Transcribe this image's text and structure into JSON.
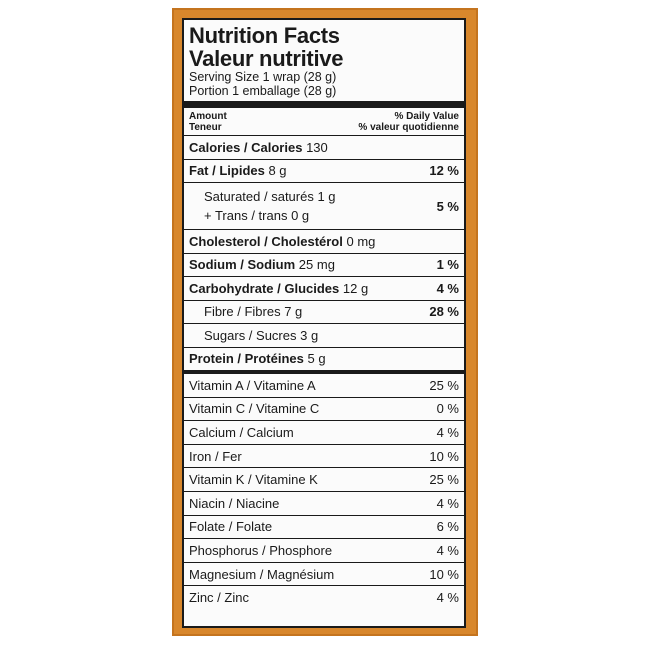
{
  "title_en": "Nutrition Facts",
  "title_fr": "Valeur nutritive",
  "serving_en": "Serving Size 1 wrap (28 g)",
  "serving_fr": "Portion 1 emballage (28 g)",
  "header": {
    "amount_en": "Amount",
    "amount_fr": "Teneur",
    "dv_en": "% Daily Value",
    "dv_fr": "% valeur quotidienne"
  },
  "calories": {
    "label": "Calories / Calories",
    "amount": "130"
  },
  "fat": {
    "label": "Fat / Lipides",
    "amount": "8 g",
    "dv": "12 %"
  },
  "saturated": {
    "label": "Saturated / saturés",
    "amount": "1 g"
  },
  "trans": {
    "label": "+ Trans / trans",
    "amount": "0 g"
  },
  "sat_trans_dv": "5 %",
  "cholesterol": {
    "label": "Cholesterol / Cholestérol",
    "amount": "0 mg"
  },
  "sodium": {
    "label": "Sodium / Sodium",
    "amount": "25 mg",
    "dv": "1 %"
  },
  "carbohydrate": {
    "label": "Carbohydrate / Glucides",
    "amount": "12 g",
    "dv": "4 %"
  },
  "fibre": {
    "label": "Fibre / Fibres",
    "amount": "7 g",
    "dv": "28 %"
  },
  "sugars": {
    "label": "Sugars / Sucres",
    "amount": "3 g"
  },
  "protein": {
    "label": "Protein / Protéines",
    "amount": "5 g"
  },
  "vitamins": [
    {
      "label": "Vitamin A / Vitamine A",
      "dv": "25 %"
    },
    {
      "label": "Vitamin C / Vitamine C",
      "dv": "0 %"
    },
    {
      "label": "Calcium / Calcium",
      "dv": "4 %"
    },
    {
      "label": "Iron / Fer",
      "dv": "10 %"
    },
    {
      "label": "Vitamin K / Vitamine K",
      "dv": "25 %"
    },
    {
      "label": "Niacin / Niacine",
      "dv": "4 %"
    },
    {
      "label": "Folate / Folate",
      "dv": "6 %"
    },
    {
      "label": "Phosphorus / Phosphore",
      "dv": "4 %"
    },
    {
      "label": "Magnesium / Magnésium",
      "dv": "10 %"
    },
    {
      "label": "Zinc / Zinc",
      "dv": "4 %"
    }
  ]
}
